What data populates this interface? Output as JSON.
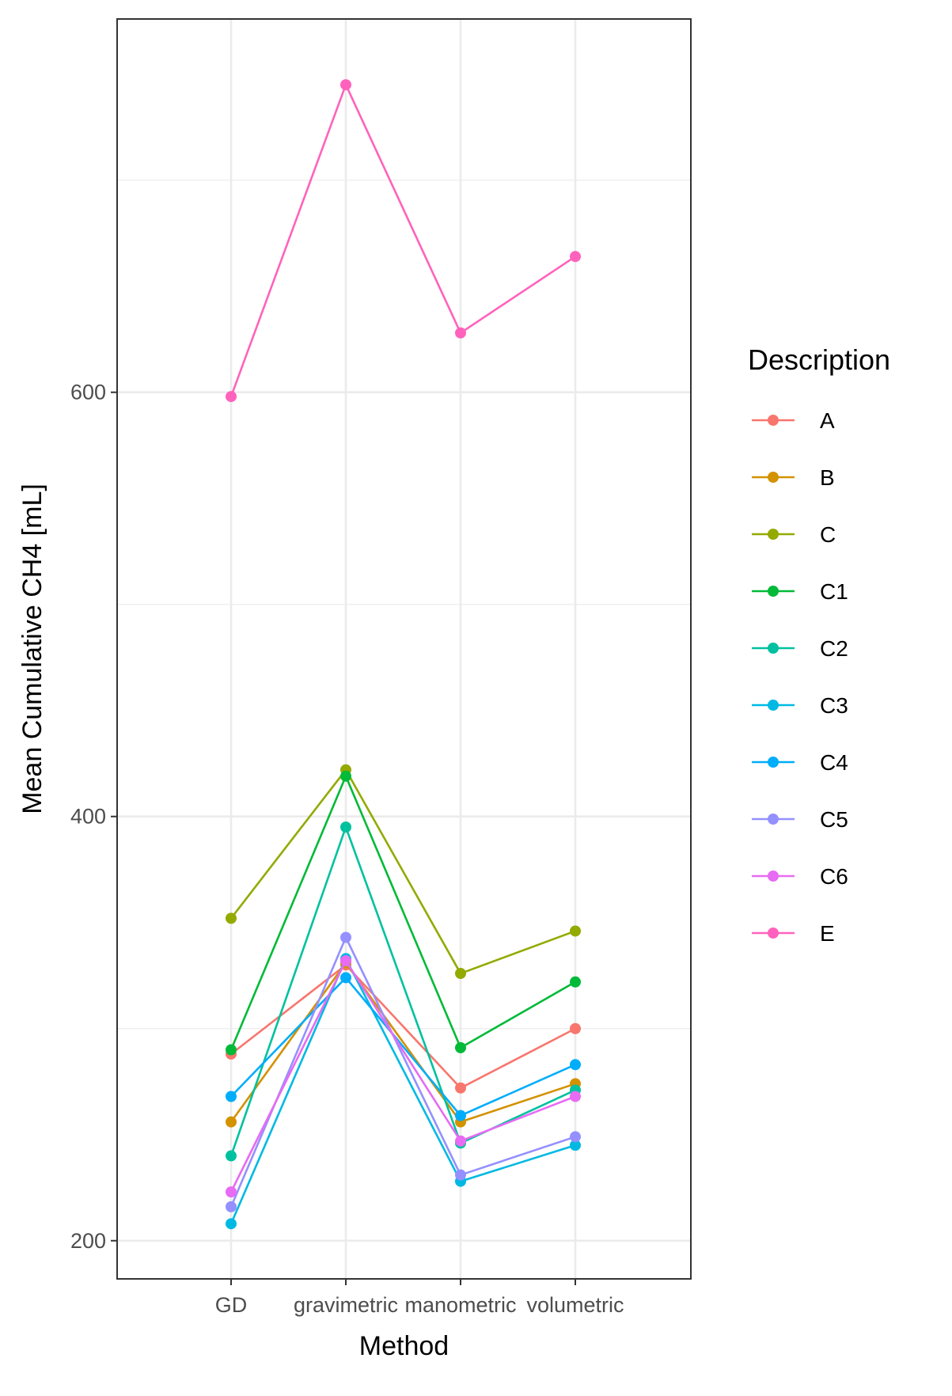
{
  "chart_data": {
    "type": "line",
    "title": "",
    "xlabel": "Method",
    "ylabel": "Mean Cumulative CH4 [mL]",
    "categories": [
      "GD",
      "gravimetric",
      "manometric",
      "volumetric"
    ],
    "yticks": [
      "200",
      "400",
      "600"
    ],
    "ylim": [
      182,
      776
    ],
    "grid": true,
    "legend_title": "Description",
    "legend_position": "right",
    "series": [
      {
        "name": "A",
        "color": "#F8766D",
        "values": [
          288,
          330,
          272,
          300
        ]
      },
      {
        "name": "B",
        "color": "#D39200",
        "values": [
          256,
          331,
          256,
          274
        ]
      },
      {
        "name": "C",
        "color": "#93AA00",
        "values": [
          352,
          422,
          326,
          346
        ]
      },
      {
        "name": "C1",
        "color": "#00BA38",
        "values": [
          290,
          419,
          291,
          322
        ]
      },
      {
        "name": "C2",
        "color": "#00C19F",
        "values": [
          240,
          395,
          246,
          271
        ]
      },
      {
        "name": "C3",
        "color": "#00B9E3",
        "values": [
          208,
          333,
          228,
          245
        ]
      },
      {
        "name": "C4",
        "color": "#00ADFA",
        "values": [
          268,
          324,
          259,
          283
        ]
      },
      {
        "name": "C5",
        "color": "#9590FF",
        "values": [
          216,
          343,
          231,
          249
        ]
      },
      {
        "name": "C6",
        "color": "#E76BF3",
        "values": [
          223,
          332,
          247,
          268
        ]
      },
      {
        "name": "E",
        "color": "#FF62BC",
        "values": [
          598,
          745,
          628,
          664
        ]
      }
    ]
  }
}
